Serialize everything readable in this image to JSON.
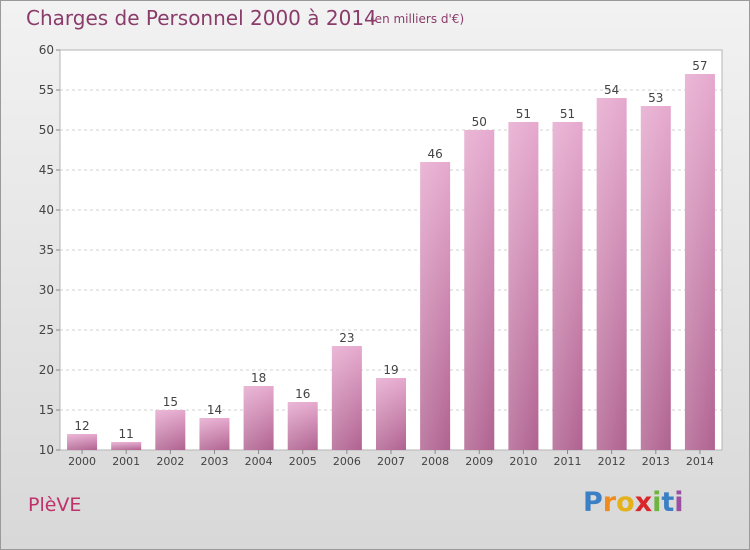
{
  "header": {
    "title": "Charges de Personnel 2000 à 2014",
    "subtitle": "(en milliers d'€)"
  },
  "footer": {
    "place": "PlèVE",
    "logo_text": "Proxiti"
  },
  "colors": {
    "bar_light": "#e6a9ce",
    "bar_dark": "#b86896",
    "text_accent": "#8a3c6a",
    "place_color": "#c0306a"
  },
  "chart_data": {
    "type": "bar",
    "categories": [
      "2000",
      "2001",
      "2002",
      "2003",
      "2004",
      "2005",
      "2006",
      "2007",
      "2008",
      "2009",
      "2010",
      "2011",
      "2012",
      "2013",
      "2014"
    ],
    "values": [
      12,
      11,
      15,
      14,
      18,
      16,
      23,
      19,
      46,
      50,
      51,
      51,
      54,
      53,
      57
    ],
    "data_labels": [
      "12",
      "11",
      "15",
      "14",
      "18",
      "16",
      "23",
      "19",
      "46",
      "50",
      "51",
      "51",
      "54",
      "53",
      "57"
    ],
    "ylim": [
      10,
      60
    ],
    "yticks": [
      10,
      15,
      20,
      25,
      30,
      35,
      40,
      45,
      50,
      55,
      60
    ],
    "grid": true
  }
}
